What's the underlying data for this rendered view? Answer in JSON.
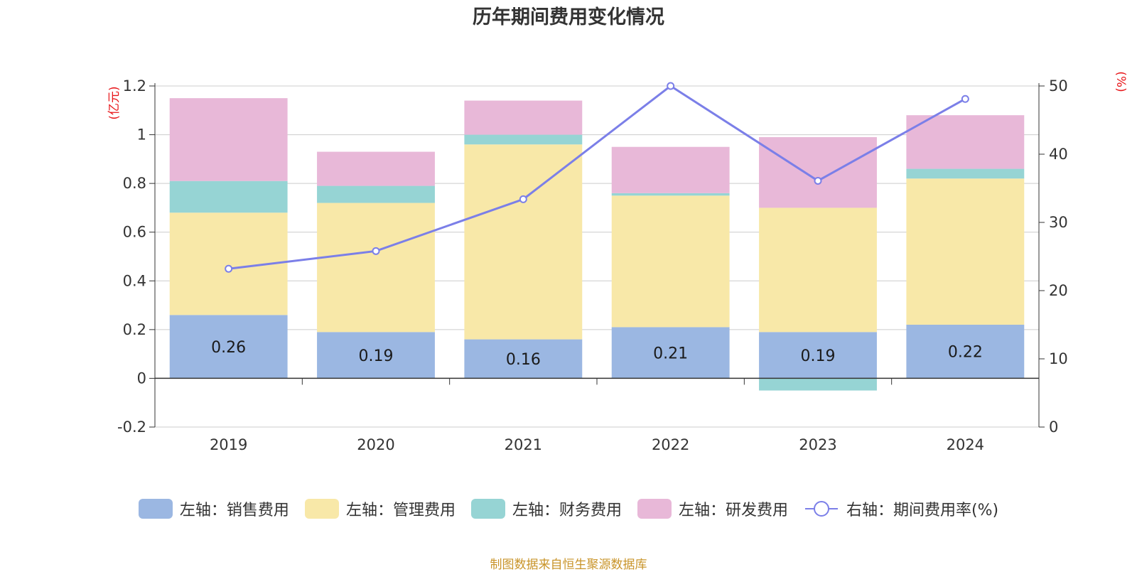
{
  "title": "历年期间费用变化情况",
  "source_note": "制图数据来自恒生聚源数据库",
  "colors": {
    "sales": "#9bb7e2",
    "admin": "#f8e8a8",
    "finance": "#96d4d4",
    "rnd": "#e8b8d8",
    "rate_line": "#7b7fe8",
    "axis_unit": "#e8161a"
  },
  "legend": [
    {
      "label": "左轴：销售费用",
      "key": "sales"
    },
    {
      "label": "左轴：管理费用",
      "key": "admin"
    },
    {
      "label": "左轴：财务费用",
      "key": "finance"
    },
    {
      "label": "左轴：研发费用",
      "key": "rnd"
    },
    {
      "label": "右轴：期间费用率(%)",
      "key": "rate_line"
    }
  ],
  "chart_data": {
    "type": "bar",
    "stacked": true,
    "title": "历年期间费用变化情况",
    "categories": [
      "2019",
      "2020",
      "2021",
      "2022",
      "2023",
      "2024"
    ],
    "left_axis": {
      "unit": "(亿元)",
      "ylim": [
        -0.2,
        1.2
      ],
      "ticks": [
        -0.2,
        0,
        0.2,
        0.4,
        0.6,
        0.8,
        1,
        1.2
      ],
      "tick_labels": [
        "-0.2",
        "0",
        "0.2",
        "0.4",
        "0.6",
        "0.8",
        "1",
        "1.2"
      ]
    },
    "right_axis": {
      "unit": "(%)",
      "ylim": [
        0,
        50
      ],
      "ticks": [
        0,
        10,
        20,
        30,
        40,
        50
      ],
      "tick_labels": [
        "0",
        "10",
        "20",
        "30",
        "40",
        "50"
      ]
    },
    "series": [
      {
        "name": "左轴：销售费用",
        "key": "sales",
        "axis": "left",
        "type": "bar",
        "values": [
          0.26,
          0.19,
          0.16,
          0.21,
          0.19,
          0.22
        ],
        "data_labels": [
          "0.26",
          "0.19",
          "0.16",
          "0.21",
          "0.19",
          "0.22"
        ]
      },
      {
        "name": "左轴：管理费用",
        "key": "admin",
        "axis": "left",
        "type": "bar",
        "values": [
          0.42,
          0.53,
          0.8,
          0.54,
          0.51,
          0.6
        ]
      },
      {
        "name": "左轴：财务费用",
        "key": "finance",
        "axis": "left",
        "type": "bar",
        "values": [
          0.13,
          0.07,
          0.04,
          0.01,
          -0.05,
          0.04
        ]
      },
      {
        "name": "左轴：研发费用",
        "key": "rnd",
        "axis": "left",
        "type": "bar",
        "values": [
          0.34,
          0.14,
          0.14,
          0.19,
          0.29,
          0.22
        ]
      },
      {
        "name": "右轴：期间费用率(%)",
        "key": "rate_line",
        "axis": "right",
        "type": "line",
        "values": [
          23.2,
          25.8,
          33.4,
          50.0,
          36.1,
          48.1
        ]
      }
    ],
    "grid": true,
    "legend_position": "bottom"
  }
}
